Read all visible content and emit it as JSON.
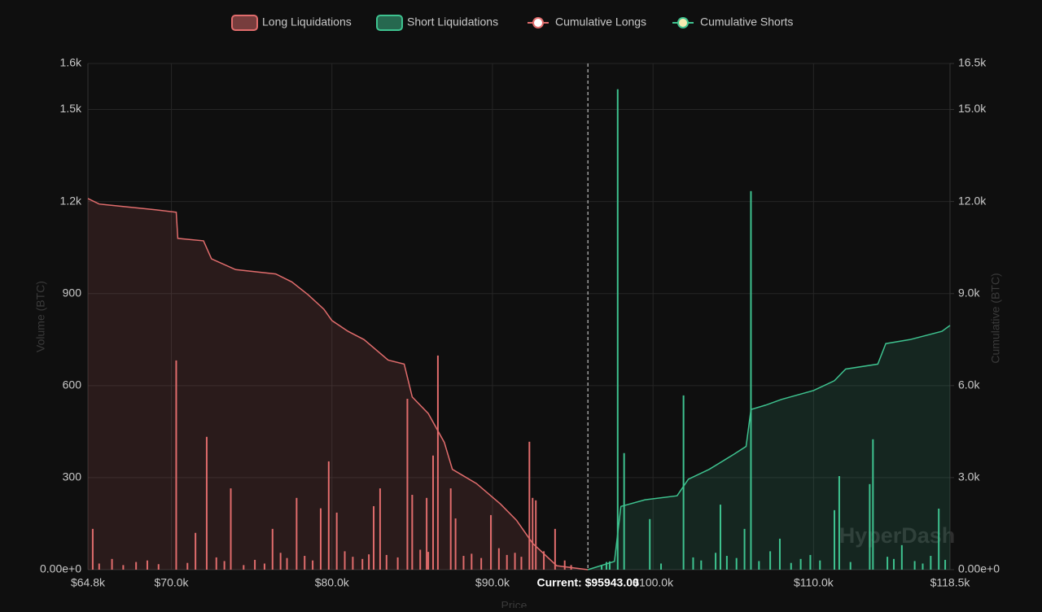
{
  "chart_data": {
    "type": "bar",
    "x_label": "Price",
    "y_label": "Volume (BTC)",
    "y2_label": "Cumulative (BTC)",
    "watermark": "HyperDash",
    "current": {
      "value": 95943,
      "label": "Current: $95943.00"
    },
    "xlim": [
      64800,
      118500
    ],
    "xticks": [
      {
        "value": 64800,
        "label": "$64.8k"
      },
      {
        "value": 70000,
        "label": "$70.0k"
      },
      {
        "value": 80000,
        "label": "$80.0k"
      },
      {
        "value": 90000,
        "label": "$90.0k"
      },
      {
        "value": 100000,
        "label": "$100.0k"
      },
      {
        "value": 110000,
        "label": "$110.0k"
      },
      {
        "value": 118500,
        "label": "$118.5k"
      }
    ],
    "ylim": [
      0,
      1650
    ],
    "yticks": [
      {
        "value": 0,
        "label": "0.00e+0"
      },
      300,
      600,
      900,
      {
        "value": 1200,
        "label": "1.2k"
      },
      {
        "value": 1500,
        "label": "1.5k"
      },
      {
        "value": 1650,
        "label": "1.6k"
      }
    ],
    "y2lim": [
      0,
      16500
    ],
    "y2ticks": [
      {
        "value": 0,
        "label": "0.00e+0"
      },
      {
        "value": 3000,
        "label": "3.0k"
      },
      {
        "value": 6000,
        "label": "6.0k"
      },
      {
        "value": 9000,
        "label": "9.0k"
      },
      {
        "value": 12000,
        "label": "12.0k"
      },
      {
        "value": 15000,
        "label": "15.0k"
      },
      {
        "value": 16500,
        "label": "16.5k"
      }
    ],
    "grid": true,
    "series": [
      {
        "name": "Long Liquidations",
        "color": "#e06c6c",
        "kind": "bar",
        "x": [
          65100,
          70300,
          71500,
          72200,
          73700,
          76300,
          77800,
          79800,
          79300,
          80300,
          82600,
          83000,
          84700,
          85000,
          86600,
          86300,
          85900,
          87400,
          87700,
          89900,
          92300,
          92500,
          92700,
          93900,
          65500,
          66300,
          67000,
          67800,
          68500,
          69200,
          71000,
          72800,
          73300,
          74500,
          75200,
          75800,
          76800,
          77200,
          78300,
          78800,
          80800,
          81300,
          81900,
          82300,
          83400,
          84100,
          85500,
          86000,
          88200,
          88700,
          89300,
          90400,
          90900,
          91400,
          91800,
          93200,
          94500,
          94900
        ],
        "values": [
          133,
          682,
          120,
          433,
          265,
          133,
          234,
          353,
          200,
          186,
          207,
          265,
          557,
          244,
          698,
          372,
          234,
          265,
          167,
          178,
          417,
          234,
          226,
          133,
          20,
          35,
          15,
          25,
          30,
          18,
          22,
          40,
          28,
          15,
          32,
          20,
          55,
          38,
          45,
          30,
          60,
          42,
          35,
          50,
          48,
          40,
          65,
          58,
          45,
          52,
          38,
          70,
          48,
          55,
          42,
          60,
          30,
          15
        ]
      },
      {
        "name": "Short Liquidations",
        "color": "#3ec28f",
        "kind": "bar",
        "x": [
          97300,
          97800,
          98200,
          99800,
          101900,
          104200,
          106100,
          105700,
          107900,
          111300,
          111600,
          113500,
          113700,
          117800,
          115500,
          96800,
          97100,
          100500,
          102500,
          103000,
          103900,
          104600,
          105200,
          106600,
          107300,
          108600,
          109200,
          109800,
          110400,
          112300,
          114600,
          115000,
          116300,
          116800,
          117300,
          118200
        ],
        "values": [
          27,
          1566,
          380,
          165,
          568,
          212,
          1234,
          133,
          101,
          194,
          305,
          279,
          425,
          199,
          80,
          15,
          25,
          20,
          40,
          30,
          55,
          45,
          38,
          28,
          60,
          22,
          35,
          48,
          30,
          25,
          42,
          35,
          28,
          20,
          45,
          32
        ]
      },
      {
        "name": "Cumulative Longs",
        "color": "#e06c6c",
        "kind": "line",
        "axis": "y2",
        "marker": "#ffffff",
        "x": [
          64800,
          65500,
          67000,
          69000,
          70300,
          70400,
          72000,
          72500,
          74000,
          76500,
          77500,
          78500,
          79500,
          80000,
          81000,
          82000,
          83500,
          84500,
          85000,
          86000,
          87000,
          87500,
          89000,
          90500,
          91500,
          92500,
          94000,
          95943
        ],
        "values": [
          12100,
          11920,
          11840,
          11730,
          11650,
          10800,
          10720,
          10130,
          9780,
          9640,
          9380,
          8970,
          8490,
          8120,
          7770,
          7500,
          6830,
          6700,
          5630,
          5090,
          4150,
          3270,
          2810,
          2140,
          1610,
          860,
          130,
          0
        ]
      },
      {
        "name": "Cumulative Shorts",
        "color": "#3ec28f",
        "kind": "line",
        "axis": "y2",
        "marker": "#f5e9b0",
        "x": [
          95943,
          97600,
          98000,
          99500,
          101500,
          102200,
          103500,
          105000,
          105800,
          106100,
          107000,
          108000,
          110000,
          111300,
          112000,
          114000,
          114500,
          116000,
          118000,
          118500
        ],
        "values": [
          0,
          270,
          2060,
          2280,
          2410,
          2950,
          3270,
          3750,
          4020,
          5220,
          5360,
          5550,
          5840,
          6160,
          6540,
          6700,
          7370,
          7500,
          7770,
          7960
        ]
      }
    ]
  }
}
